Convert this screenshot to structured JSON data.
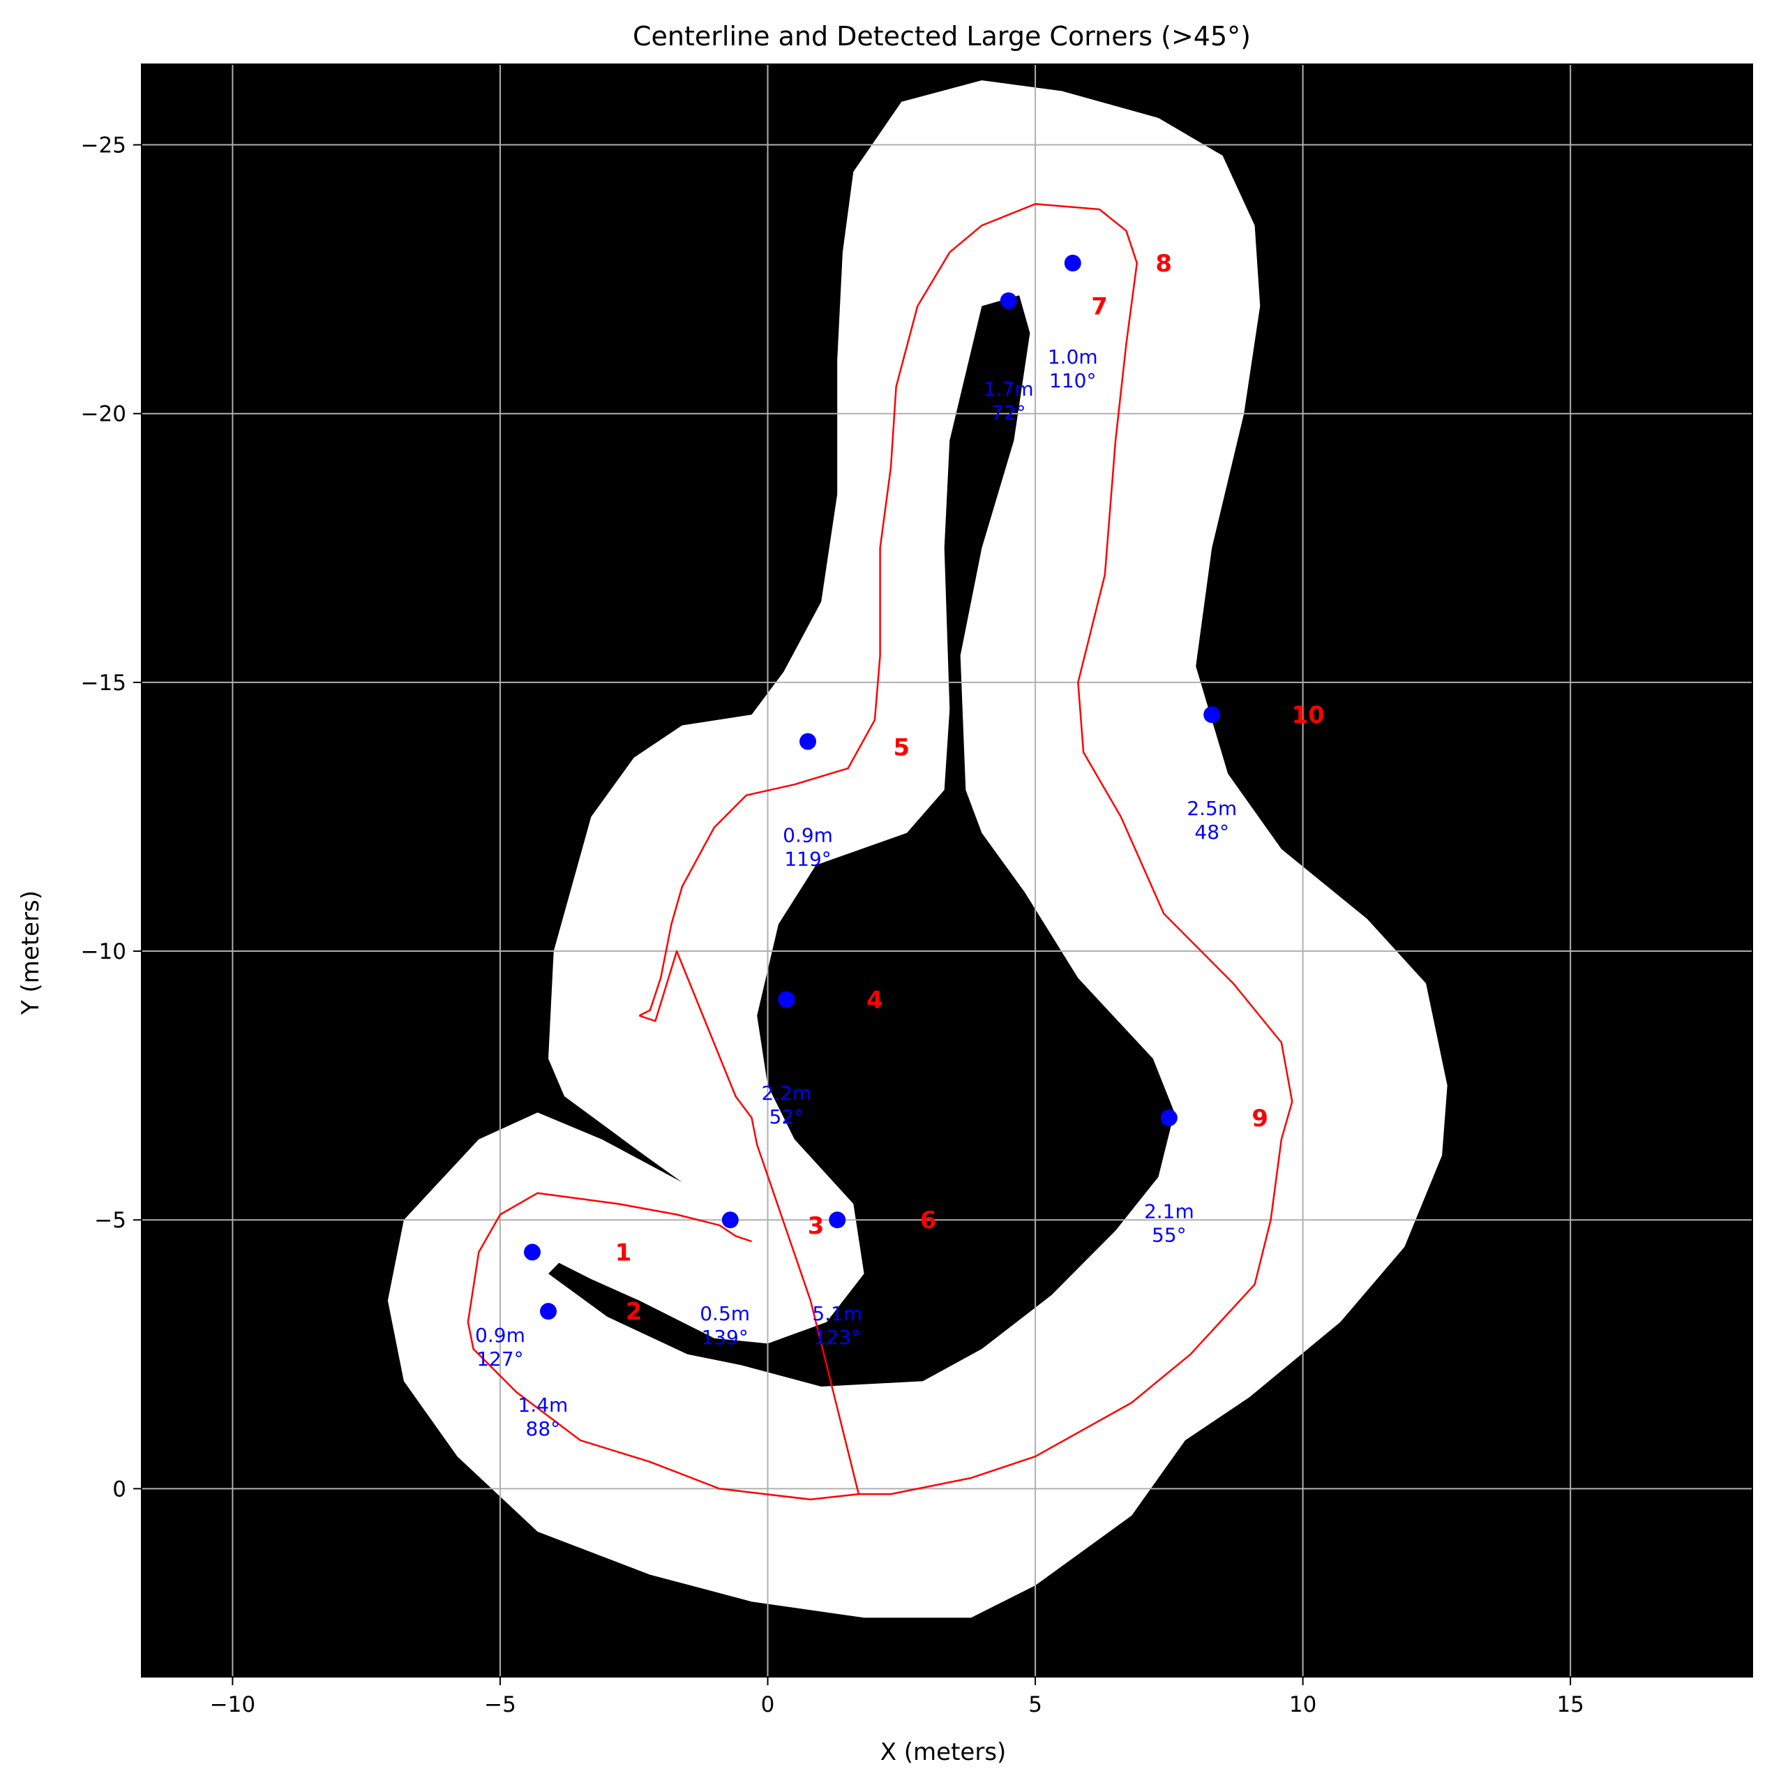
{
  "chart_data": {
    "type": "scatter",
    "title": "Centerline and Detected Large Corners (>45°)",
    "xlabel": "X (meters)",
    "ylabel": "Y (meters)",
    "xlim": [
      -11.7,
      18.4
    ],
    "ylim": [
      3.5,
      -26.5
    ],
    "y_inverted": true,
    "grid": true,
    "xticks": [
      -10,
      -5,
      0,
      5,
      10,
      15
    ],
    "yticks": [
      -25,
      -20,
      -15,
      -10,
      -5,
      0
    ],
    "xtick_labels": [
      "−10",
      "−5",
      "0",
      "5",
      "10",
      "15"
    ],
    "ytick_labels": [
      "−25",
      "−20",
      "−15",
      "−10",
      "−5",
      "0"
    ],
    "colors": {
      "background": "#000000",
      "track": "#ffffff",
      "centerline": "#ff0000",
      "corner_point": "#0000ff",
      "corner_label": "#ff0000",
      "annotation": "#0000ff",
      "grid": "#b0b0b0"
    },
    "track_region": {
      "description_free": true,
      "outer_boundary": [
        [
          -1.6,
          -14.2
        ],
        [
          -0.3,
          -14.4
        ],
        [
          0.3,
          -15.2
        ],
        [
          1.0,
          -16.5
        ],
        [
          1.3,
          -18.5
        ],
        [
          1.3,
          -21
        ],
        [
          1.4,
          -23
        ],
        [
          1.6,
          -24.5
        ],
        [
          2.5,
          -25.8
        ],
        [
          4,
          -26.2
        ],
        [
          5.5,
          -26.0
        ],
        [
          7.3,
          -25.5
        ],
        [
          8.5,
          -24.8
        ],
        [
          9.1,
          -23.5
        ],
        [
          9.2,
          -22
        ],
        [
          8.9,
          -20
        ],
        [
          8.3,
          -17.5
        ],
        [
          8.0,
          -15.3
        ],
        [
          8.6,
          -13.3
        ],
        [
          9.6,
          -11.9
        ],
        [
          11.2,
          -10.6
        ],
        [
          12.3,
          -9.4
        ],
        [
          12.7,
          -7.5
        ],
        [
          12.6,
          -6.2
        ],
        [
          11.9,
          -4.5
        ],
        [
          10.7,
          -3.1
        ],
        [
          9.0,
          -1.7
        ],
        [
          7.8,
          -0.9
        ],
        [
          6.8,
          0.5
        ],
        [
          5.0,
          1.8
        ],
        [
          3.8,
          2.4
        ],
        [
          1.8,
          2.4
        ],
        [
          -0.3,
          2.1
        ],
        [
          -2.2,
          1.6
        ],
        [
          -4.3,
          0.8
        ],
        [
          -5.8,
          -0.6
        ],
        [
          -6.8,
          -2.0
        ],
        [
          -7.1,
          -3.5
        ],
        [
          -6.8,
          -5.0
        ],
        [
          -5.4,
          -6.5
        ],
        [
          -4.3,
          -7.0
        ],
        [
          -3.1,
          -6.5
        ],
        [
          -1.6,
          -5.7
        ],
        [
          -2.3,
          -6.2
        ],
        [
          -3.8,
          -7.3
        ],
        [
          -4.1,
          -8.0
        ],
        [
          -4.0,
          -10.0
        ],
        [
          -3.3,
          -12.5
        ],
        [
          -2.5,
          -13.6
        ]
      ],
      "holes": [
        [
          [
            4.0,
            -22.0
          ],
          [
            4.7,
            -22.2
          ],
          [
            4.9,
            -21.5
          ],
          [
            4.6,
            -19.5
          ],
          [
            4.0,
            -17.5
          ],
          [
            3.6,
            -15.5
          ],
          [
            3.7,
            -13.0
          ],
          [
            4.0,
            -12.2
          ],
          [
            4.8,
            -11.1
          ],
          [
            5.8,
            -9.5
          ],
          [
            7.2,
            -8.0
          ],
          [
            7.6,
            -7.0
          ],
          [
            7.3,
            -5.8
          ],
          [
            6.5,
            -4.8
          ],
          [
            5.3,
            -3.6
          ],
          [
            4.0,
            -2.6
          ],
          [
            2.9,
            -2.0
          ],
          [
            1.0,
            -1.9
          ],
          [
            -0.5,
            -2.3
          ],
          [
            -1.5,
            -2.5
          ],
          [
            -3.0,
            -3.2
          ],
          [
            -4.1,
            -4.0
          ],
          [
            -3.9,
            -4.2
          ],
          [
            -3.3,
            -3.9
          ],
          [
            -2.4,
            -3.5
          ],
          [
            -1.0,
            -2.8
          ],
          [
            0.0,
            -2.7
          ],
          [
            1.1,
            -3.1
          ],
          [
            1.8,
            -4.0
          ],
          [
            1.6,
            -5.3
          ],
          [
            0.5,
            -6.5
          ],
          [
            0.0,
            -7.5
          ],
          [
            -0.2,
            -8.8
          ],
          [
            0.2,
            -10.5
          ],
          [
            0.9,
            -11.6
          ],
          [
            2.6,
            -12.2
          ],
          [
            3.3,
            -13.0
          ],
          [
            3.4,
            -14.5
          ],
          [
            3.3,
            -17.5
          ],
          [
            3.4,
            -19.5
          ]
        ]
      ]
    },
    "centerline": [
      [
        -2.4,
        -8.8
      ],
      [
        -2.2,
        -8.9
      ],
      [
        -2.0,
        -9.5
      ],
      [
        -1.8,
        -10.5
      ],
      [
        -1.6,
        -11.2
      ],
      [
        -1.0,
        -12.3
      ],
      [
        -0.4,
        -12.9
      ],
      [
        0.5,
        -13.1
      ],
      [
        1.5,
        -13.4
      ],
      [
        2.0,
        -14.3
      ],
      [
        2.1,
        -15.5
      ],
      [
        2.1,
        -17.5
      ],
      [
        2.3,
        -19.0
      ],
      [
        2.4,
        -20.5
      ],
      [
        2.8,
        -22.0
      ],
      [
        3.4,
        -23.0
      ],
      [
        4.0,
        -23.5
      ],
      [
        5.0,
        -23.9
      ],
      [
        6.2,
        -23.8
      ],
      [
        6.7,
        -23.4
      ],
      [
        6.9,
        -22.8
      ],
      [
        6.7,
        -21.3
      ],
      [
        6.5,
        -19.5
      ],
      [
        6.3,
        -17.0
      ],
      [
        5.8,
        -15.0
      ],
      [
        5.9,
        -13.7
      ],
      [
        6.6,
        -12.5
      ],
      [
        7.4,
        -10.7
      ],
      [
        8.7,
        -9.4
      ],
      [
        9.6,
        -8.3
      ],
      [
        9.8,
        -7.2
      ],
      [
        9.6,
        -6.5
      ],
      [
        9.4,
        -5.0
      ],
      [
        9.1,
        -3.8
      ],
      [
        7.9,
        -2.5
      ],
      [
        6.8,
        -1.6
      ],
      [
        5.0,
        -0.6
      ],
      [
        3.8,
        -0.2
      ],
      [
        2.3,
        0.1
      ],
      [
        1.7,
        0.1
      ],
      [
        0.8,
        -3.5
      ],
      [
        -0.2,
        -6.4
      ],
      [
        -0.3,
        -6.9
      ],
      [
        -0.6,
        -7.3
      ],
      [
        -1.7,
        -10.0
      ],
      [
        -2.1,
        -8.7
      ],
      [
        -2.4,
        -8.8
      ]
    ],
    "centerline_lower": [
      [
        -0.3,
        -4.6
      ],
      [
        -0.6,
        -4.7
      ],
      [
        -0.9,
        -4.9
      ],
      [
        -1.7,
        -5.1
      ],
      [
        -2.8,
        -5.3
      ],
      [
        -4.3,
        -5.5
      ],
      [
        -5.0,
        -5.1
      ],
      [
        -5.4,
        -4.4
      ],
      [
        -5.6,
        -3.1
      ],
      [
        -5.5,
        -2.6
      ],
      [
        -4.7,
        -1.8
      ],
      [
        -3.5,
        -0.9
      ],
      [
        -2.2,
        -0.5
      ],
      [
        -0.9,
        0.0
      ],
      [
        0.8,
        0.2
      ],
      [
        1.7,
        0.1
      ]
    ],
    "corners": [
      {
        "id": "1",
        "x": -4.4,
        "y": -4.4,
        "label_x": -2.7,
        "label_y": -4.4,
        "ann": [
          "0.9m",
          "127°"
        ],
        "ann_x": -5.0,
        "ann_y": -2.5
      },
      {
        "id": "2",
        "x": -4.1,
        "y": -3.3,
        "label_x": -2.5,
        "label_y": -3.3,
        "ann": [
          "1.4m",
          "88°"
        ],
        "ann_x": -4.2,
        "ann_y": -1.2
      },
      {
        "id": "3",
        "x": -0.7,
        "y": -5.0,
        "label_x": 0.9,
        "label_y": -4.9,
        "ann": [
          "0.5m",
          "139°"
        ],
        "ann_x": -0.8,
        "ann_y": -2.9
      },
      {
        "id": "4",
        "x": 0.35,
        "y": -9.1,
        "label_x": 2.0,
        "label_y": -9.1,
        "ann": [
          "2.2m",
          "52°"
        ],
        "ann_x": 0.35,
        "ann_y": -7.0
      },
      {
        "id": "5",
        "x": 0.75,
        "y": -13.9,
        "label_x": 2.5,
        "label_y": -13.8,
        "ann": [
          "0.9m",
          "119°"
        ],
        "ann_x": 0.75,
        "ann_y": -11.8
      },
      {
        "id": "6",
        "x": 1.3,
        "y": -5.0,
        "label_x": 3.0,
        "label_y": -5.0,
        "ann": [
          "5.1m",
          "123°"
        ],
        "ann_x": 1.3,
        "ann_y": -2.9
      },
      {
        "id": "7",
        "x": 4.5,
        "y": -22.1,
        "label_x": 6.2,
        "label_y": -22.0,
        "ann": [
          "1.7m",
          "72°"
        ],
        "ann_x": 4.5,
        "ann_y": -20.1
      },
      {
        "id": "8",
        "x": 5.7,
        "y": -22.8,
        "label_x": 7.4,
        "label_y": -22.8,
        "ann": [
          "1.0m",
          "110°"
        ],
        "ann_x": 5.7,
        "ann_y": -20.7
      },
      {
        "id": "9",
        "x": 7.5,
        "y": -6.9,
        "label_x": 9.2,
        "label_y": -6.9,
        "ann": [
          "2.1m",
          "55°"
        ],
        "ann_x": 7.5,
        "ann_y": -4.8
      },
      {
        "id": "10",
        "x": 8.3,
        "y": -14.4,
        "label_x": 10.1,
        "label_y": -14.4,
        "ann": [
          "2.5m",
          "48°"
        ],
        "ann_x": 8.3,
        "ann_y": -12.3
      }
    ]
  }
}
